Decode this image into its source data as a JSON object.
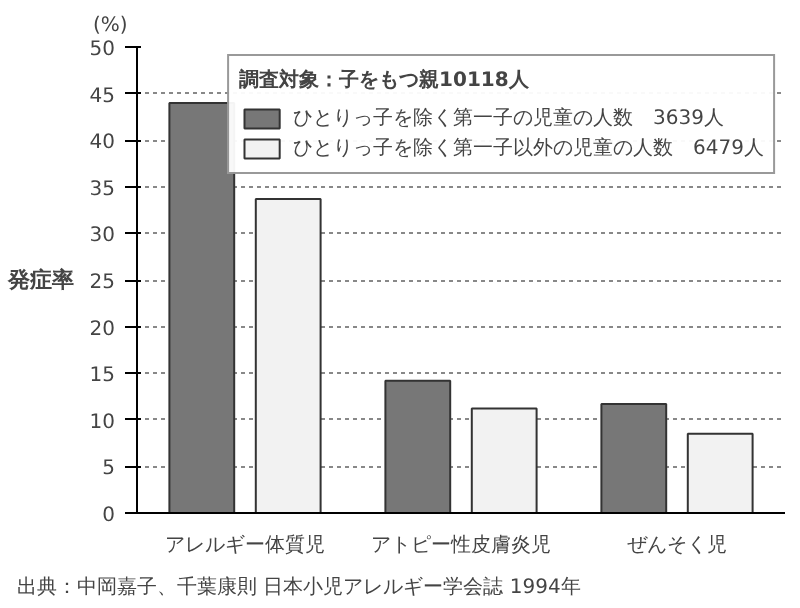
{
  "chart_data": {
    "type": "bar",
    "ylabel": "発症率",
    "legend_title": "調査対象：子をもつ親10118人",
    "categories": [
      "アレルギー体質児",
      "アトピー性皮膚炎児",
      "ぜんそく児"
    ],
    "series": [
      {
        "name": "ひとりっ子を除く第一子の児童の人数　3639人",
        "color": "#777777",
        "values": [
          44,
          14.2,
          11.7
        ]
      },
      {
        "name": "ひとりっ子を除く第一子以外の児童の人数　6479人",
        "color": "#f2f2f2",
        "values": [
          33.7,
          11.2,
          8.5
        ]
      }
    ],
    "ylim": [
      0,
      50
    ],
    "yticks": [
      0,
      5,
      10,
      15,
      20,
      25,
      30,
      35,
      40,
      45,
      50
    ],
    "grid": "y",
    "legend": "top right",
    "annotations": [
      "(%)",
      "出典：中岡嘉子、千葉康則 日本小児アレルギー学会誌 1994年"
    ]
  }
}
